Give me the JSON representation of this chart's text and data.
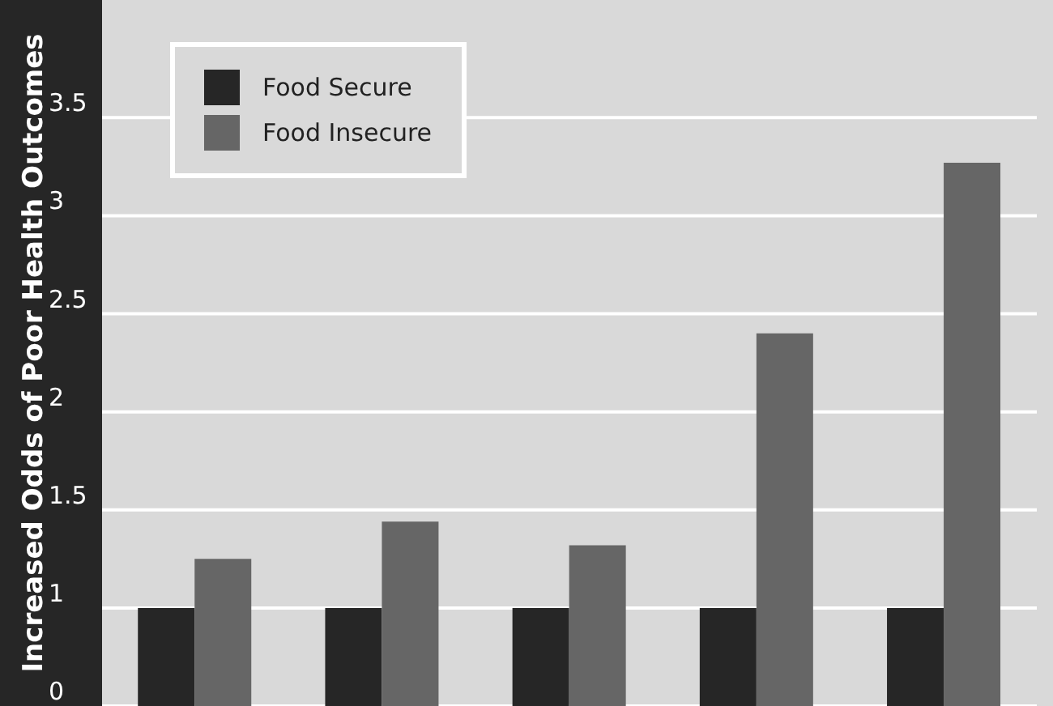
{
  "chart_data": {
    "type": "bar",
    "ylabel": "Increased Odds of Poor Health Outcomes",
    "categories": [
      null,
      null,
      null,
      null,
      null
    ],
    "series": [
      {
        "name": "Food Secure",
        "color": "#262626",
        "values": [
          1,
          1,
          1,
          1,
          1
        ]
      },
      {
        "name": "Food Insecure",
        "color": "#666666",
        "values": [
          1.25,
          1.44,
          1.32,
          2.4,
          3.27
        ]
      }
    ],
    "ylim": [
      0.5,
      4.1
    ],
    "yticks": [
      {
        "value": 0.5,
        "label": "0"
      },
      1,
      1.5,
      2,
      2.5,
      3,
      3.5
    ],
    "grid": "y",
    "legend": "top left"
  }
}
